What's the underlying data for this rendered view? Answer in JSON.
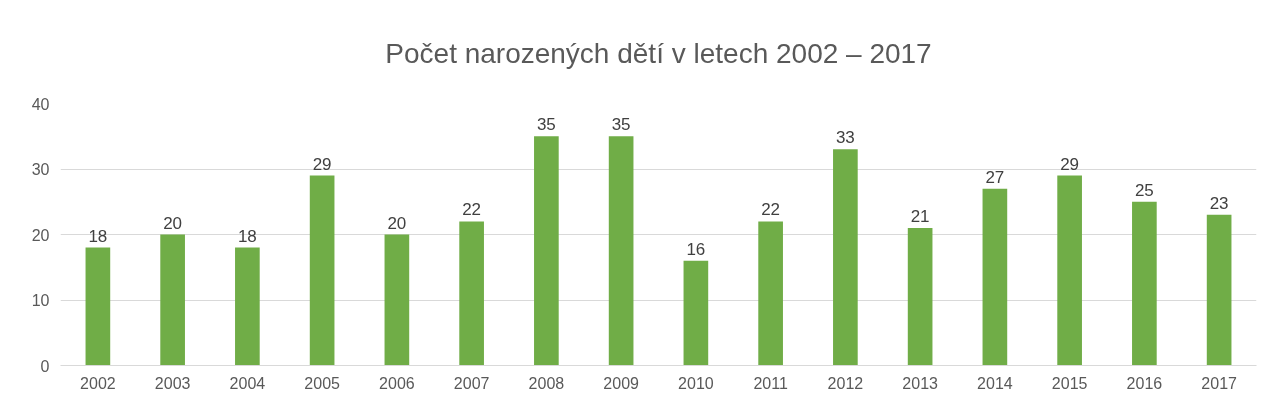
{
  "chart_data": {
    "type": "bar",
    "title": "Počet narozených dětí v letech 2002 – 2017",
    "categories": [
      "2002",
      "2003",
      "2004",
      "2005",
      "2006",
      "2007",
      "2008",
      "2009",
      "2010",
      "2011",
      "2012",
      "2013",
      "2014",
      "2015",
      "2016",
      "2017"
    ],
    "values": [
      18,
      20,
      18,
      29,
      20,
      22,
      35,
      35,
      16,
      22,
      33,
      21,
      27,
      29,
      25,
      23
    ],
    "color": "#70ad47",
    "ylim": [
      0,
      40
    ],
    "yticks": [
      0,
      10,
      20,
      30,
      40
    ],
    "grid": "y",
    "data_labels": true
  }
}
